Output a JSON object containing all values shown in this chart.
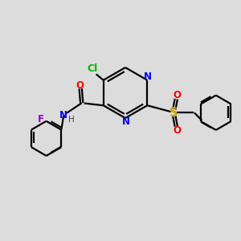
{
  "background_color": "#dcdcdc",
  "bond_color": "#000000",
  "atom_colors": {
    "N": "#0000ff",
    "O": "#ff0000",
    "S": "#ccaa00",
    "Cl": "#00bb00",
    "F": "#9900cc",
    "H": "#444444",
    "C": "#000000"
  },
  "figsize": [
    3.0,
    3.0
  ],
  "dpi": 100,
  "lw": 1.6,
  "fs": 8.5,
  "xlim": [
    0,
    10
  ],
  "ylim": [
    0,
    10
  ]
}
